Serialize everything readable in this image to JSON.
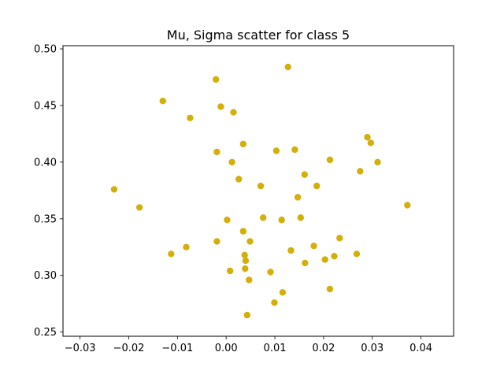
{
  "chart_data": {
    "type": "scatter",
    "title": "Mu, Sigma scatter for class 5",
    "xlabel": "",
    "ylabel": "",
    "xlim": [
      -0.0335,
      0.0467
    ],
    "ylim": [
      0.2463,
      0.5028
    ],
    "xticks": [
      -0.03,
      -0.02,
      -0.01,
      0.0,
      0.01,
      0.02,
      0.03,
      0.04
    ],
    "xtick_labels": [
      "−0.03",
      "−0.02",
      "−0.01",
      "0.00",
      "0.01",
      "0.02",
      "0.03",
      "0.04"
    ],
    "yticks": [
      0.25,
      0.3,
      0.35,
      0.4,
      0.45,
      0.5
    ],
    "ytick_labels": [
      "0.25",
      "0.30",
      "0.35",
      "0.40",
      "0.45",
      "0.50"
    ],
    "grid": false,
    "legend": "none",
    "point_color": "#d4af0a",
    "series": [
      {
        "x": [
          0.0127,
          -0.0021,
          -0.013,
          -0.0011,
          0.0015,
          -0.0074,
          0.029,
          0.0297,
          0.0035,
          0.0141,
          0.0103,
          -0.0019,
          0.0213,
          0.0311,
          0.0012,
          0.0275,
          0.0161,
          0.0026,
          0.0071,
          0.0186,
          -0.023,
          0.0147,
          0.0372,
          -0.0178,
          0.0076,
          0.0153,
          0.0114,
          0.0002,
          0.0035,
          0.0233,
          -0.0019,
          0.0049,
          0.018,
          -0.0082,
          -0.0113,
          0.0133,
          0.0038,
          0.0222,
          0.0268,
          0.0203,
          0.0162,
          0.004,
          0.0039,
          0.0008,
          0.0091,
          0.0047,
          0.0213,
          0.0116,
          0.0099,
          0.0043
        ],
        "y": [
          0.484,
          0.473,
          0.454,
          0.449,
          0.444,
          0.439,
          0.422,
          0.417,
          0.416,
          0.411,
          0.41,
          0.409,
          0.402,
          0.4,
          0.4,
          0.392,
          0.389,
          0.385,
          0.379,
          0.379,
          0.376,
          0.369,
          0.362,
          0.36,
          0.351,
          0.351,
          0.349,
          0.349,
          0.339,
          0.333,
          0.33,
          0.33,
          0.326,
          0.325,
          0.319,
          0.322,
          0.318,
          0.317,
          0.319,
          0.314,
          0.311,
          0.313,
          0.306,
          0.304,
          0.303,
          0.296,
          0.288,
          0.285,
          0.276,
          0.265
        ]
      }
    ]
  }
}
